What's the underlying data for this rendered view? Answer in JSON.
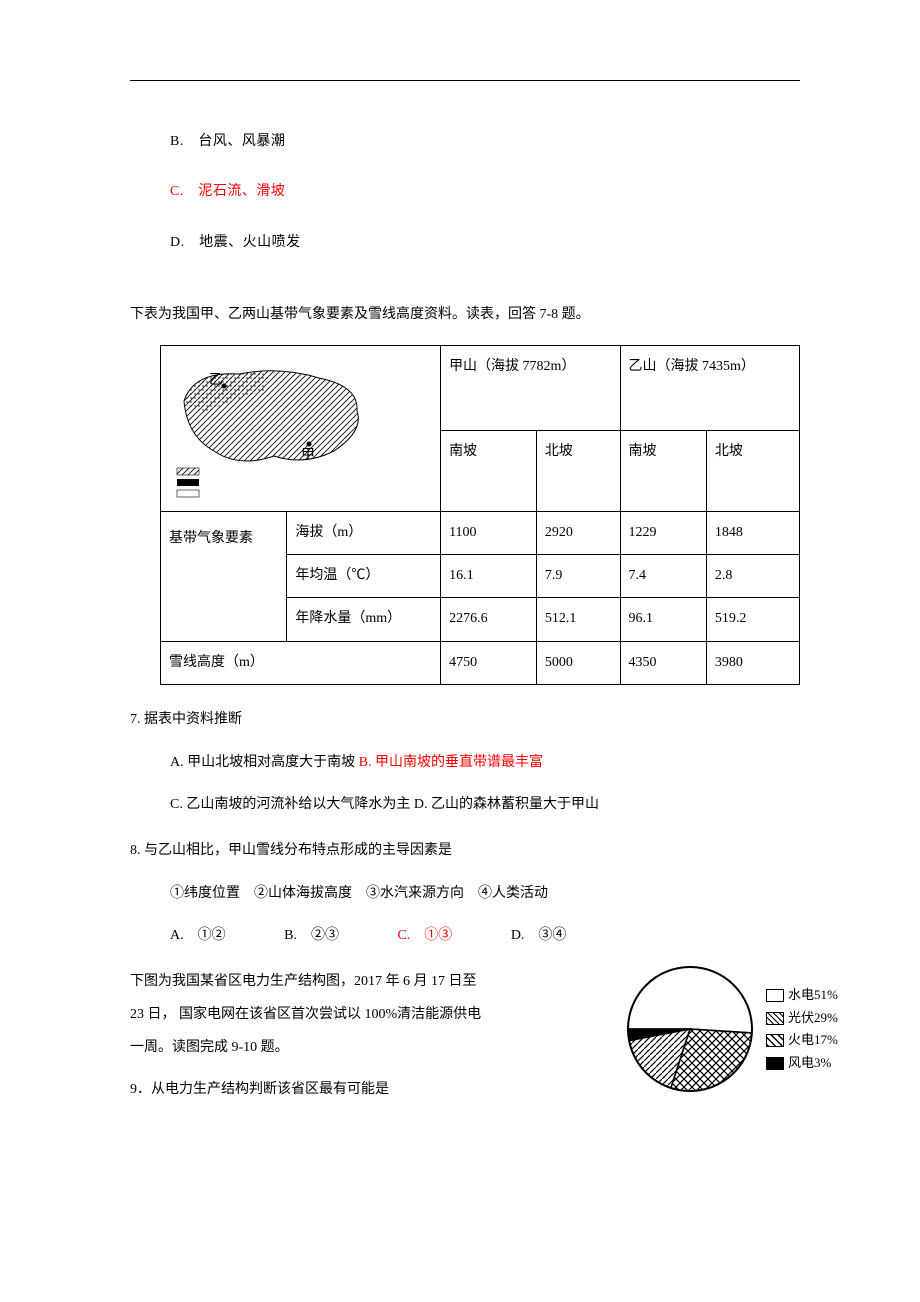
{
  "top_options": {
    "b": "B.　台风、风暴潮",
    "c": "C.　泥石流、滑坡",
    "d": "D.　地震、火山喷发"
  },
  "intro7": "下表为我国甲、乙两山基带气象要素及雪线高度资料。读表，回答 7-8 题。",
  "table": {
    "header": {
      "mt_a": "甲山（海拔 7782m）",
      "mt_b": "乙山（海拔 7435m）",
      "south": "南坡",
      "north": "北坡"
    },
    "row_labels": {
      "group": "基带气象要素",
      "alt": "海拔（m）",
      "temp": "年均温（℃）",
      "prec": "年降水量（mm）",
      "snow": "雪线高度（m）"
    },
    "values": {
      "alt": [
        "1100",
        "2920",
        "1229",
        "1848"
      ],
      "temp": [
        "16.1",
        "7.9",
        "7.4",
        "2.8"
      ],
      "prec": [
        "2276.6",
        "512.1",
        "96.1",
        "519.2"
      ],
      "snow": [
        "4750",
        "5000",
        "4350",
        "3980"
      ]
    },
    "map_labels": {
      "yi": "乙",
      "jia": "甲"
    }
  },
  "q7": {
    "stem": "7. 据表中资料推断",
    "a": "A. 甲山北坡相对高度大于南坡 ",
    "b": "B. 甲山南坡的垂直带谱最丰富",
    "c": "C. 乙山南坡的河流补给以大气降水为主 D. 乙山的森林蓄积量大于甲山"
  },
  "q8": {
    "stem": "8. 与乙山相比，甲山雪线分布特点形成的主导因素是",
    "factors": "①纬度位置　②山体海拔高度　③水汽来源方向　④人类活动",
    "a": "A.　①②",
    "b": "B.　②③",
    "c": "C.　①③",
    "d": "D.　③④"
  },
  "intro9": {
    "l1": "下图为我国某省区电力生产结构图，2017 年 6 月 17 日至",
    "l2": "23 日， 国家电网在该省区首次尝试以 100%清洁能源供电",
    "l3": "一周。读图完成 9-10 题。"
  },
  "pie": {
    "colors": {
      "hydro_fill": "#ffffff",
      "pv_pattern": "crosshatch",
      "thermal_pattern": "diag",
      "wind_fill": "#000000",
      "stroke": "#000000"
    },
    "slices": [
      {
        "label": "水电51%",
        "value": 51,
        "key": "hydro"
      },
      {
        "label": "光伏29%",
        "value": 29,
        "key": "pv"
      },
      {
        "label": "火电17%",
        "value": 17,
        "key": "thermal"
      },
      {
        "label": "风电3%",
        "value": 3,
        "key": "wind"
      }
    ]
  },
  "q9": "9．从电力生产结构判断该省区最有可能是"
}
